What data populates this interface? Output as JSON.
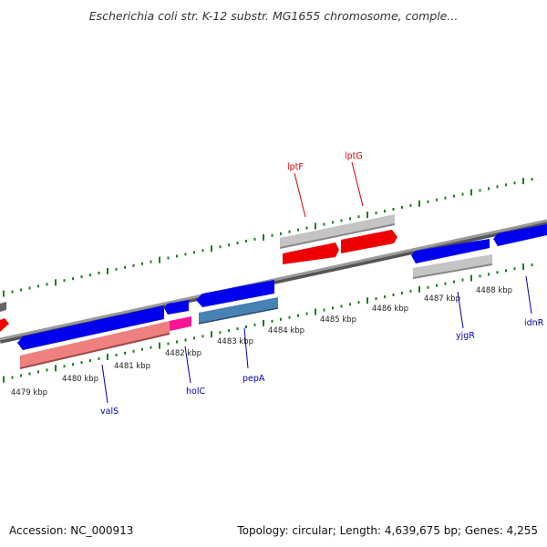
{
  "title": "Escherichia coli str. K-12 substr. MG1655 chromosome, comple...",
  "footer": {
    "accession": "Accession: NC_000913",
    "summary": "Topology: circular; Length: 4,639,675 bp; Genes: 4,255"
  },
  "colors": {
    "backbone": "#888888",
    "tick": "#1a7f1a",
    "cds_forward": "#0000ee",
    "cds_reverse": "#ee0000",
    "rna": "#ff1493",
    "gene_forward_bar": "#b8b8b8",
    "gene_reverse_bar": "#f08080",
    "steel_bar": "#4682b4",
    "label_forward": "#dd0000",
    "label_reverse": "#0000aa"
  },
  "scale": {
    "unit": "kbp",
    "ticks": [
      "4479 kbp",
      "4480 kbp",
      "4481 kbp",
      "4482 kbp",
      "4483 kbp",
      "4484 kbp",
      "4485 kbp",
      "4486 kbp",
      "4487 kbp",
      "4488 kbp"
    ]
  },
  "genes": [
    {
      "name": "lptF",
      "strand": "forward"
    },
    {
      "name": "lptG",
      "strand": "forward"
    },
    {
      "name": "valS",
      "strand": "reverse"
    },
    {
      "name": "holC",
      "strand": "reverse"
    },
    {
      "name": "pepA",
      "strand": "reverse"
    },
    {
      "name": "yjgR",
      "strand": "reverse"
    },
    {
      "name": "idnR",
      "strand": "reverse"
    }
  ]
}
